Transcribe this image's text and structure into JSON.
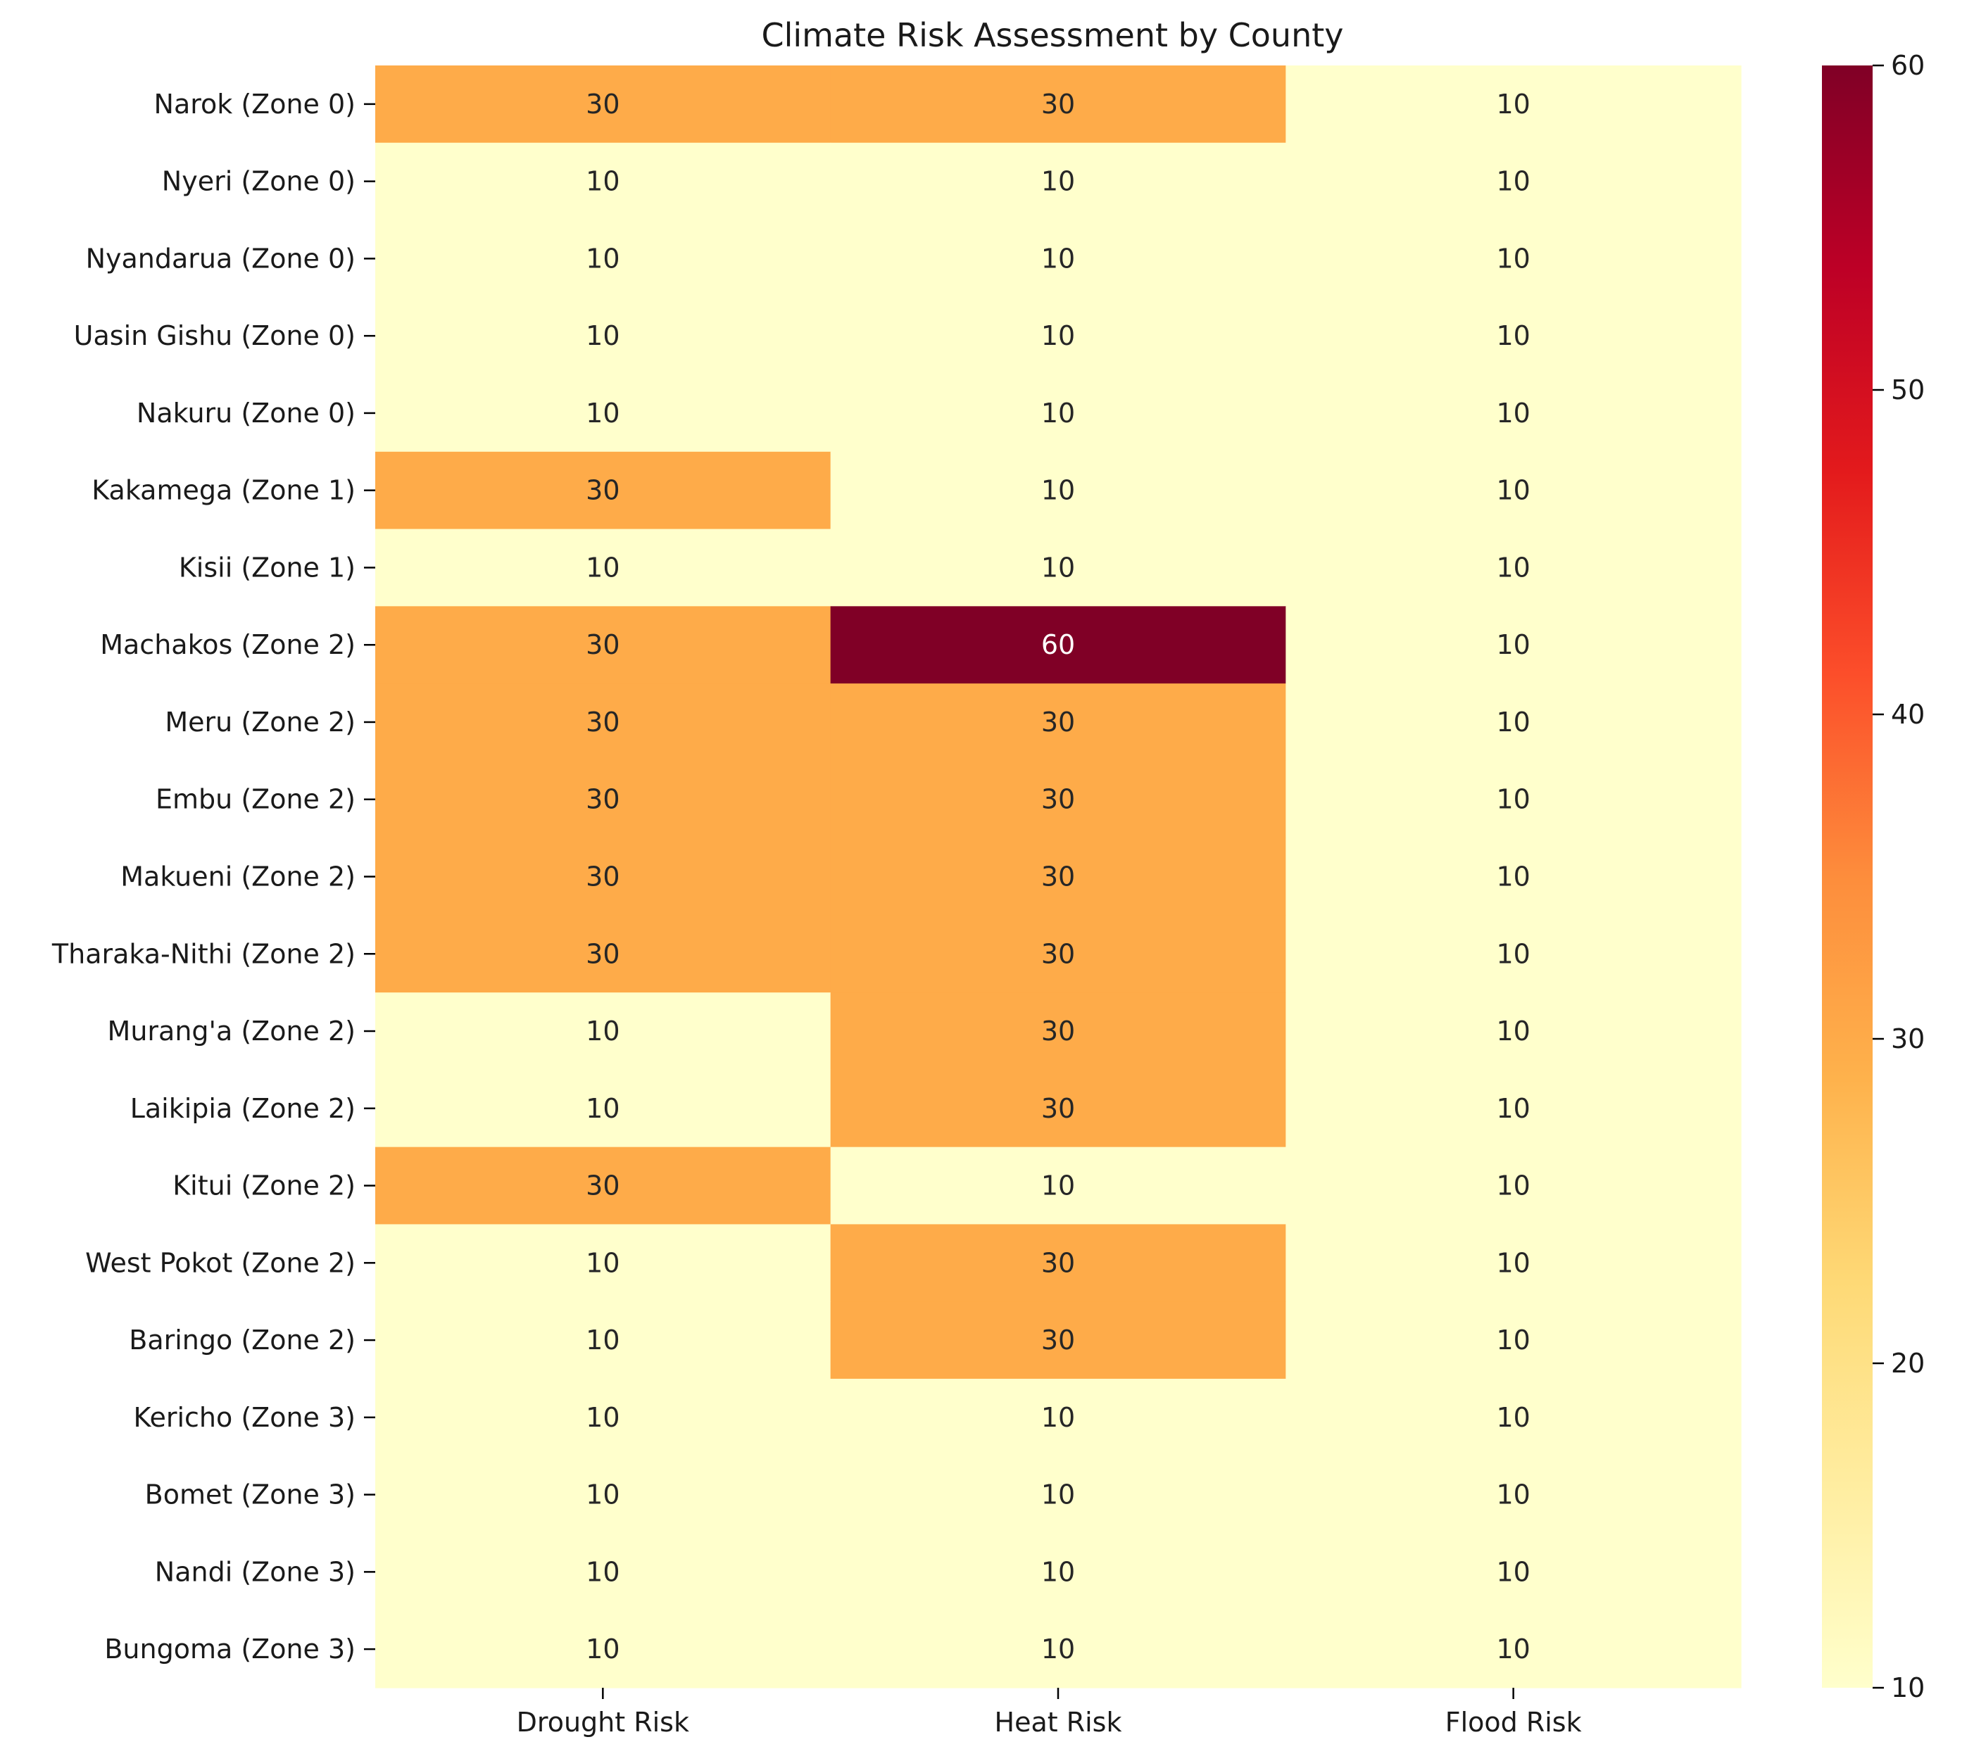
{
  "chart_data": {
    "type": "heatmap",
    "title": "Climate Risk Assessment by County",
    "xlabel": "",
    "ylabel": "",
    "columns": [
      "Drought Risk",
      "Heat Risk",
      "Flood Risk"
    ],
    "rows": [
      "Narok (Zone 0)",
      "Nyeri (Zone 0)",
      "Nyandarua (Zone 0)",
      "Uasin Gishu (Zone 0)",
      "Nakuru (Zone 0)",
      "Kakamega (Zone 1)",
      "Kisii (Zone 1)",
      "Machakos (Zone 2)",
      "Meru (Zone 2)",
      "Embu (Zone 2)",
      "Makueni (Zone 2)",
      "Tharaka-Nithi (Zone 2)",
      "Murang'a (Zone 2)",
      "Laikipia (Zone 2)",
      "Kitui (Zone 2)",
      "West Pokot (Zone 2)",
      "Baringo (Zone 2)",
      "Kericho (Zone 3)",
      "Bomet (Zone 3)",
      "Nandi (Zone 3)",
      "Bungoma (Zone 3)"
    ],
    "values": [
      [
        30,
        30,
        10
      ],
      [
        10,
        10,
        10
      ],
      [
        10,
        10,
        10
      ],
      [
        10,
        10,
        10
      ],
      [
        10,
        10,
        10
      ],
      [
        30,
        10,
        10
      ],
      [
        10,
        10,
        10
      ],
      [
        30,
        60,
        10
      ],
      [
        30,
        30,
        10
      ],
      [
        30,
        30,
        10
      ],
      [
        30,
        30,
        10
      ],
      [
        30,
        30,
        10
      ],
      [
        10,
        30,
        10
      ],
      [
        10,
        30,
        10
      ],
      [
        30,
        10,
        10
      ],
      [
        10,
        30,
        10
      ],
      [
        10,
        30,
        10
      ],
      [
        10,
        10,
        10
      ],
      [
        10,
        10,
        10
      ],
      [
        10,
        10,
        10
      ],
      [
        10,
        10,
        10
      ]
    ],
    "colormap": "YlOrRd",
    "color_range": [
      10,
      60
    ],
    "colorbar_ticks": [
      10,
      20,
      30,
      40,
      50,
      60
    ],
    "colors": {
      "low": "#ffffcc",
      "mid": "#fea746",
      "high": "#800026"
    },
    "annotations": true,
    "grid": false,
    "legend": "colorbar-right"
  }
}
